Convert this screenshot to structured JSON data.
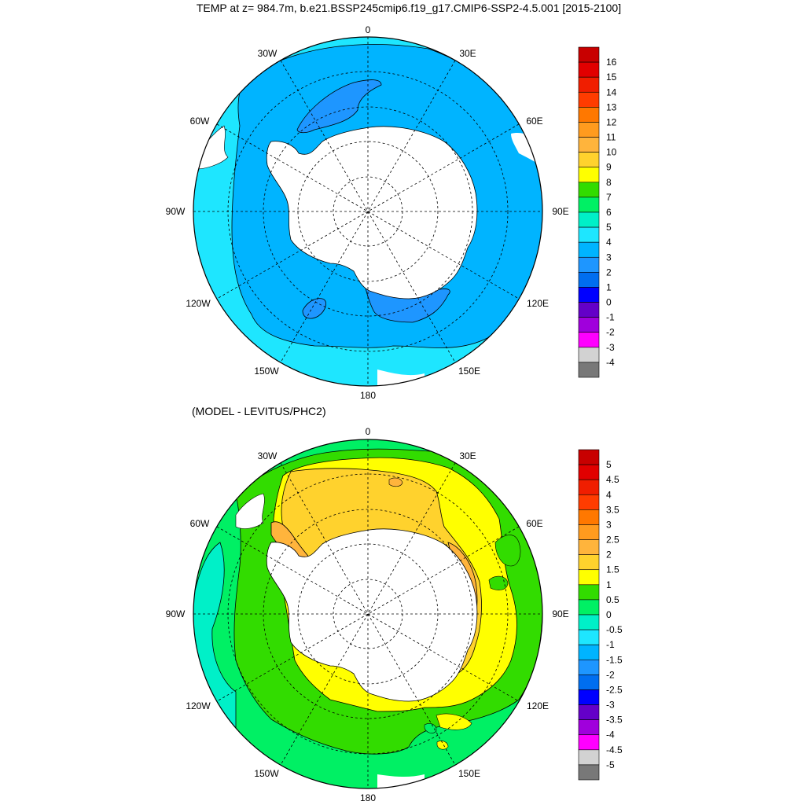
{
  "title": "TEMP at z= 984.7m, b.e21.BSSP245cmip6.f19_g17.CMIP6-SSP2-4.5.001 [2015-2100]",
  "subtitle": "(MODEL - LEVITUS/PHC2)",
  "longitude_labels": {
    "n": "0",
    "ne": "30E",
    "e1": "60E",
    "e": "90E",
    "se1": "120E",
    "se": "150E",
    "s": "180",
    "sw": "150W",
    "sw1": "120W",
    "w": "90W",
    "nw1": "60W",
    "nw": "30W"
  },
  "colorbar_top": {
    "labels": [
      "16",
      "15",
      "14",
      "13",
      "12",
      "11",
      "10",
      "9",
      "8",
      "7",
      "6",
      "5",
      "4",
      "3",
      "2",
      "1",
      "0",
      "-1",
      "-2",
      "-3",
      "-4"
    ],
    "colors": [
      "#c80000",
      "#e10000",
      "#f01e00",
      "#ff3c00",
      "#ff7800",
      "#ff9b1e",
      "#ffb43c",
      "#ffd22d",
      "#ffff00",
      "#32dc00",
      "#00f064",
      "#00f0c8",
      "#1ee6ff",
      "#00b4ff",
      "#1e96ff",
      "#006ef0",
      "#0000ff",
      "#6400c8",
      "#a000dc",
      "#ff00ff",
      "#d2d2d2",
      "#787878"
    ]
  },
  "colorbar_bottom": {
    "labels": [
      "5",
      "4.5",
      "4",
      "3.5",
      "3",
      "2.5",
      "2",
      "1.5",
      "1",
      "0.5",
      "0",
      "-0.5",
      "-1",
      "-1.5",
      "-2",
      "-2.5",
      "-3",
      "-3.5",
      "-4",
      "-4.5",
      "-5"
    ],
    "colors": [
      "#c80000",
      "#e10000",
      "#f01e00",
      "#ff3c00",
      "#ff7800",
      "#ff9b1e",
      "#ffb43c",
      "#ffd22d",
      "#ffff00",
      "#32dc00",
      "#00f064",
      "#00f0c8",
      "#1ee6ff",
      "#00b4ff",
      "#1e96ff",
      "#006ef0",
      "#0000ff",
      "#6400c8",
      "#a000dc",
      "#ff00ff",
      "#d2d2d2",
      "#787878"
    ]
  }
}
